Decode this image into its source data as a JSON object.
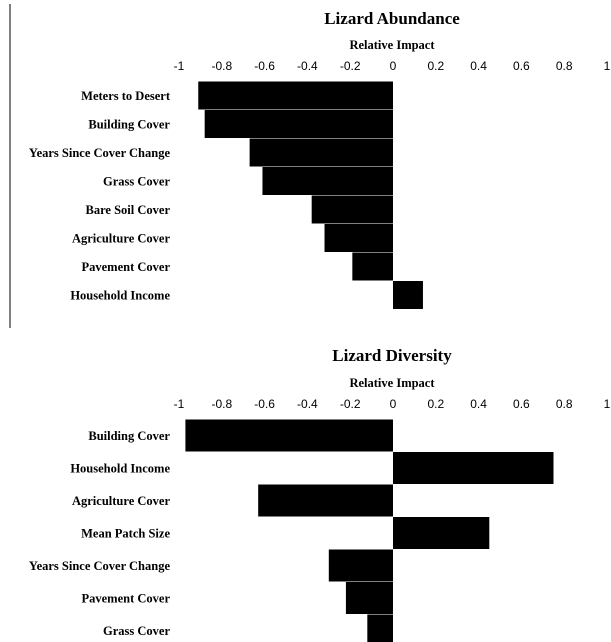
{
  "chart_data": [
    {
      "type": "bar",
      "orientation": "horizontal",
      "title": "Lizard Abundance",
      "xlabel": "Relative Impact",
      "ylabel": "",
      "xlim": [
        -1,
        1
      ],
      "ticks": [
        "-1",
        "-0.8",
        "-0.6",
        "-0.4",
        "-0.2",
        "0",
        "0.2",
        "0.4",
        "0.6",
        "0.8",
        "1"
      ],
      "categories": [
        "Meters to Desert",
        "Building Cover",
        "Years Since Cover Change",
        "Grass Cover",
        "Bare Soil Cover",
        "Agriculture Cover",
        "Pavement Cover",
        "Household Income"
      ],
      "values": [
        -0.91,
        -0.88,
        -0.67,
        -0.61,
        -0.38,
        -0.32,
        -0.19,
        0.14
      ],
      "bar_color": "#000000",
      "grid": false
    },
    {
      "type": "bar",
      "orientation": "horizontal",
      "title": "Lizard Diversity",
      "xlabel": "Relative Impact",
      "ylabel": "",
      "xlim": [
        -1,
        1
      ],
      "ticks": [
        "-1",
        "-0.8",
        "-0.6",
        "-0.4",
        "-0.2",
        "0",
        "0.2",
        "0.4",
        "0.6",
        "0.8",
        "1"
      ],
      "categories": [
        "Building Cover",
        "Household Income",
        "Agriculture Cover",
        "Mean Patch Size",
        "Years Since Cover Change",
        "Pavement Cover",
        "Grass Cover"
      ],
      "values": [
        -0.97,
        0.75,
        -0.63,
        0.45,
        -0.3,
        -0.22,
        -0.12
      ],
      "bar_color": "#000000",
      "grid": false
    }
  ]
}
